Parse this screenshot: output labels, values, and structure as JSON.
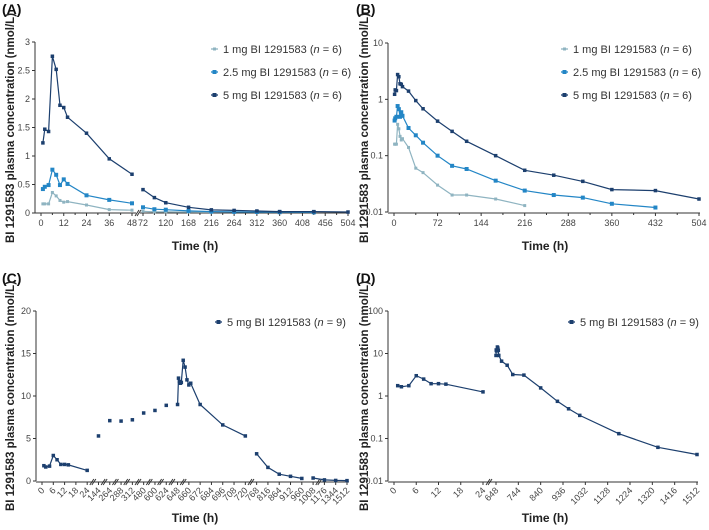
{
  "chart_data": [
    {
      "panel": "(A)",
      "type": "line",
      "scale": "linear",
      "xlabel": "Time (h)",
      "ylabel": "BI 1291583 plasma concentration (nmol/L)",
      "ylim": [
        0,
        3
      ],
      "yticks": [
        "0",
        "0.5",
        "1",
        "1.5",
        "2",
        "2.5",
        "3"
      ],
      "ytick_values": [
        0,
        0.5,
        1,
        1.5,
        2,
        2.5,
        3
      ],
      "x_segments": [
        {
          "range": [
            0,
            48
          ],
          "ticks": [
            0,
            12,
            24,
            36,
            48
          ]
        },
        {
          "range": [
            72,
            504
          ],
          "ticks": [
            72,
            120,
            168,
            216,
            264,
            312,
            360,
            408,
            456,
            504
          ]
        }
      ],
      "axis_break": true,
      "legend_position": "top-right",
      "series": [
        {
          "name": "1 mg BI 1291583 (n = 6)",
          "color": "#8fb4c1",
          "x": [
            1,
            2,
            4,
            6,
            8,
            10,
            12,
            14,
            24,
            36,
            48,
            72,
            96,
            120,
            168,
            216
          ],
          "y": [
            0.16,
            0.16,
            0.16,
            0.36,
            0.3,
            0.22,
            0.19,
            0.2,
            0.14,
            0.06,
            0.05,
            0.03,
            0.02,
            0.02,
            0.017,
            0.013
          ]
        },
        {
          "name": "2.5 mg BI 1291583 (n = 6)",
          "color": "#2386c6",
          "x": [
            1,
            2,
            4,
            6,
            8,
            10,
            12,
            14,
            24,
            36,
            48,
            72,
            96,
            120,
            168,
            216,
            264,
            312,
            360,
            432
          ],
          "y": [
            0.42,
            0.46,
            0.49,
            0.76,
            0.67,
            0.49,
            0.59,
            0.51,
            0.31,
            0.23,
            0.17,
            0.1,
            0.066,
            0.058,
            0.036,
            0.024,
            0.02,
            0.018,
            0.014,
            0.012
          ]
        },
        {
          "name": "5 mg BI 1291583 (n = 6)",
          "color": "#1c3f6e",
          "x": [
            1,
            2,
            4,
            6,
            8,
            10,
            12,
            14,
            24,
            36,
            48,
            72,
            96,
            120,
            168,
            216,
            264,
            312,
            360,
            432,
            504
          ],
          "y": [
            1.23,
            1.47,
            1.43,
            2.75,
            2.52,
            1.89,
            1.85,
            1.68,
            1.4,
            0.95,
            0.68,
            0.41,
            0.27,
            0.18,
            0.1,
            0.055,
            0.045,
            0.035,
            0.025,
            0.024,
            0.017
          ]
        }
      ]
    },
    {
      "panel": "(B)",
      "type": "line",
      "scale": "log",
      "xlabel": "Time (h)",
      "ylabel": "BI 1291583 plasma concentration (nmol/L)",
      "ylim": [
        0.01,
        10
      ],
      "yticks": [
        "0.01",
        "0.1",
        "1",
        "10"
      ],
      "ytick_values": [
        0.01,
        0.1,
        1,
        10
      ],
      "x_segments": [
        {
          "range": [
            0,
            504
          ],
          "ticks": [
            0,
            72,
            144,
            216,
            288,
            360,
            432,
            504
          ]
        }
      ],
      "axis_break": false,
      "legend_position": "top-right",
      "series_ref": "same as panel (A)"
    },
    {
      "panel": "(C)",
      "type": "line",
      "scale": "linear",
      "xlabel": "Time (h)",
      "ylabel": "BI 1291583 plasma concentration (nmol/L)",
      "ylim": [
        0,
        20
      ],
      "yticks": [
        "0",
        "5",
        "10",
        "15",
        "20"
      ],
      "ytick_values": [
        0,
        5,
        10,
        15,
        20
      ],
      "xticks": [
        "0",
        "6",
        "12",
        "18",
        "24",
        "144",
        "264",
        "288",
        "312",
        "480",
        "600",
        "624",
        "648",
        "660",
        "672",
        "684",
        "696",
        "708",
        "720",
        "768",
        "816",
        "864",
        "912",
        "960",
        "1008",
        "1176",
        "1344",
        "1512"
      ],
      "axis_break": true,
      "legend_position": "top-right",
      "series": [
        {
          "name": "5 mg BI 1291583 (n = 9)",
          "color": "#1c3f6e",
          "groups": [
            {
              "connected": true,
              "x": [
                1,
                2,
                4,
                6,
                8,
                10,
                12,
                14,
                24
              ],
              "y": [
                1.8,
                1.65,
                1.75,
                3.0,
                2.5,
                1.95,
                1.95,
                1.9,
                1.25
              ]
            },
            {
              "connected": false,
              "x": [
                144,
                264,
                288,
                312,
                480,
                600,
                624
              ],
              "y": [
                5.3,
                7.1,
                7.05,
                7.2,
                8.0,
                8.3,
                8.9
              ]
            },
            {
              "connected": true,
              "x": [
                648,
                649,
                650,
                651,
                652,
                654,
                656,
                658,
                660,
                662,
                672,
                696,
                720
              ],
              "y": [
                9.0,
                12.1,
                11.7,
                11.5,
                11.6,
                14.2,
                13.4,
                11.9,
                11.3,
                11.5,
                9.0,
                6.6,
                5.3
              ]
            },
            {
              "connected": true,
              "x": [
                768,
                816,
                864,
                912,
                960
              ],
              "y": [
                3.2,
                1.6,
                0.8,
                0.55,
                0.3
              ]
            },
            {
              "connected": true,
              "x": [
                1008,
                1176,
                1344,
                1512
              ],
              "y": [
                0.35,
                0.13,
                0.065,
                0.042
              ]
            }
          ]
        }
      ]
    },
    {
      "panel": "(D)",
      "type": "line",
      "scale": "log",
      "xlabel": "Time (h)",
      "ylabel": "BI 1291583 plasma concentration (nmol/L)",
      "ylim": [
        0.01,
        100
      ],
      "yticks": [
        "0.01",
        "0.1",
        "1",
        "10",
        "100"
      ],
      "ytick_values": [
        0.01,
        0.1,
        1,
        10,
        100
      ],
      "x_segments": [
        {
          "range": [
            0,
            24
          ],
          "ticks": [
            0,
            6,
            12,
            18,
            24
          ]
        },
        {
          "range": [
            648,
            1512
          ],
          "ticks": [
            648,
            744,
            840,
            936,
            1032,
            1128,
            1224,
            1320,
            1416,
            1512
          ]
        }
      ],
      "axis_break": true,
      "legend_position": "top-right",
      "series": [
        {
          "name": "5 mg BI 1291583 (n = 9)",
          "color": "#1c3f6e",
          "groups": [
            {
              "x": [
                1,
                2,
                4,
                6,
                8,
                10,
                12,
                14,
                24
              ],
              "y": [
                1.75,
                1.65,
                1.75,
                3.0,
                2.5,
                1.95,
                1.95,
                1.9,
                1.25
              ]
            },
            {
              "x": [
                648,
                649,
                650,
                651,
                652,
                654,
                656,
                658,
                660,
                672,
                696,
                720,
                768,
                840,
                912,
                960,
                1008,
                1176,
                1344,
                1512
              ],
              "y": [
                9.0,
                12.1,
                11.7,
                11.5,
                11.6,
                14.2,
                13.4,
                11.9,
                9.0,
                6.6,
                5.3,
                3.2,
                3.1,
                1.55,
                0.75,
                0.5,
                0.35,
                0.13,
                0.062,
                0.042
              ]
            }
          ]
        }
      ]
    }
  ],
  "labels": {
    "panelA": "(A)",
    "panelB": "(B)",
    "panelC": "(C)",
    "panelD": "(D)",
    "ylabel": "BI 1291583 plasma concentration (nmol/L)",
    "xlabel": "Time (h)",
    "legend1": "1 mg BI 1291583 (",
    "legend25": "2.5 mg BI 1291583 (",
    "legend5": "5 mg BI 1291583 (",
    "n6": " = 6)",
    "n9": " = 9)",
    "n": "n"
  }
}
